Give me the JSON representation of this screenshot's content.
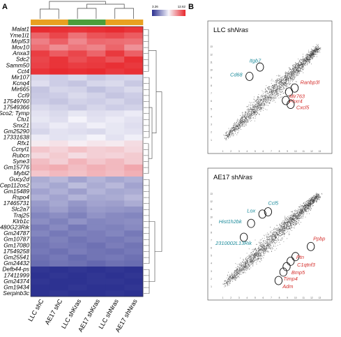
{
  "panels": {
    "a": "A",
    "b": "B"
  },
  "colors": {
    "red": "#e8262b",
    "white": "#f6f5fb",
    "blue": "#2b3090",
    "teal": "#1a8a9a",
    "label_red": "#d42d2a",
    "groups": [
      "#e8a020",
      "#e8a020",
      "#4a9e3a",
      "#4a9e3a",
      "#e8a020",
      "#e8a020"
    ]
  },
  "chart_data": [
    {
      "type": "heatmap",
      "title": "",
      "legend": {
        "min": "3.26",
        "max": "12.62"
      },
      "columns": [
        "LLC shC",
        "AE17 shC",
        "LLC shKras",
        "AE17 shKras",
        "LLC shNras",
        "AE17 shNras"
      ],
      "rows": [
        {
          "gene": "Malat1",
          "values": [
            12.5,
            12.4,
            12.3,
            12.4,
            12.5,
            12.3
          ]
        },
        {
          "gene": "Yme1l1",
          "values": [
            11.2,
            11.9,
            10.9,
            11.6,
            11.8,
            11.4
          ]
        },
        {
          "gene": "Mrpl53",
          "values": [
            10.6,
            11.3,
            10.4,
            11.1,
            11.0,
            10.9
          ]
        },
        {
          "gene": "Mov10",
          "values": [
            11.0,
            10.3,
            10.8,
            10.5,
            11.2,
            10.2
          ]
        },
        {
          "gene": "Anxa3",
          "values": [
            12.1,
            11.4,
            11.9,
            11.2,
            12.2,
            11.3
          ]
        },
        {
          "gene": "Sdc2",
          "values": [
            11.9,
            12.3,
            11.7,
            12.1,
            11.6,
            12.4
          ]
        },
        {
          "gene": "Samm50",
          "values": [
            12.0,
            12.3,
            12.1,
            12.2,
            12.4,
            12.2
          ]
        },
        {
          "gene": "Cct4",
          "values": [
            12.3,
            12.5,
            12.4,
            12.5,
            12.2,
            12.4
          ]
        },
        {
          "gene": "Mir107",
          "values": [
            7.2,
            7.0,
            7.3,
            6.9,
            7.1,
            7.2
          ]
        },
        {
          "gene": "Kcnq4",
          "values": [
            7.4,
            7.0,
            6.8,
            7.2,
            7.3,
            6.9
          ]
        },
        {
          "gene": "Mir665",
          "values": [
            6.8,
            7.2,
            7.1,
            6.7,
            7.0,
            7.3
          ]
        },
        {
          "gene": "Ccl9",
          "values": [
            6.9,
            7.0,
            7.3,
            7.1,
            6.8,
            7.0
          ]
        },
        {
          "gene": "17549760",
          "values": [
            7.0,
            6.8,
            7.1,
            7.0,
            7.2,
            6.9
          ]
        },
        {
          "gene": "17549366",
          "values": [
            7.3,
            7.1,
            6.9,
            7.2,
            7.0,
            7.1
          ]
        },
        {
          "gene": "Sco2; Tymp",
          "values": [
            7.5,
            7.3,
            7.6,
            7.4,
            7.5,
            7.7
          ]
        },
        {
          "gene": "Ctu1",
          "values": [
            7.6,
            7.4,
            7.9,
            7.5,
            7.7,
            7.5
          ]
        },
        {
          "gene": "Snx21",
          "values": [
            7.4,
            7.7,
            7.5,
            7.8,
            7.6,
            7.4
          ]
        },
        {
          "gene": "Gm25290",
          "values": [
            7.2,
            7.5,
            7.4,
            7.3,
            7.6,
            7.5
          ]
        },
        {
          "gene": "17331638",
          "values": [
            7.7,
            7.5,
            7.6,
            7.9,
            7.5,
            7.8
          ]
        },
        {
          "gene": "Rfx1",
          "values": [
            8.2,
            8.4,
            8.1,
            8.3,
            8.2,
            8.5
          ]
        },
        {
          "gene": "Ccnyl1",
          "values": [
            9.0,
            8.7,
            9.1,
            8.8,
            8.9,
            8.6
          ]
        },
        {
          "gene": "Rubcn",
          "values": [
            8.6,
            8.9,
            8.5,
            8.8,
            8.7,
            8.9
          ]
        },
        {
          "gene": "Syne3",
          "values": [
            9.2,
            8.8,
            9.4,
            9.0,
            9.3,
            8.9
          ]
        },
        {
          "gene": "Gm15776",
          "values": [
            9.4,
            9.6,
            9.2,
            9.5,
            9.3,
            9.7
          ]
        },
        {
          "gene": "Mybl2",
          "values": [
            9.0,
            9.3,
            9.1,
            9.4,
            9.2,
            9.5
          ]
        },
        {
          "gene": "Gucy2d",
          "values": [
            6.2,
            6.5,
            6.0,
            6.4,
            6.1,
            6.3
          ]
        },
        {
          "gene": "Cep112os2",
          "values": [
            6.4,
            6.1,
            6.6,
            6.2,
            6.5,
            6.0
          ]
        },
        {
          "gene": "Gm15489",
          "values": [
            6.0,
            6.3,
            5.9,
            6.4,
            6.1,
            6.2
          ]
        },
        {
          "gene": "Rspo4",
          "values": [
            6.3,
            6.0,
            6.4,
            6.1,
            6.2,
            6.5
          ]
        },
        {
          "gene": "17465731",
          "values": [
            5.8,
            6.1,
            5.7,
            6.0,
            5.9,
            6.2
          ]
        },
        {
          "gene": "Slc2a7",
          "values": [
            5.6,
            5.9,
            5.5,
            5.8,
            5.7,
            5.6
          ]
        },
        {
          "gene": "Traj25",
          "values": [
            5.3,
            5.5,
            5.2,
            5.6,
            5.4,
            5.3
          ]
        },
        {
          "gene": "Klrb1c",
          "values": [
            5.5,
            5.2,
            5.6,
            5.3,
            5.4,
            5.5
          ]
        },
        {
          "gene": "4930480G23Rik",
          "values": [
            5.1,
            5.4,
            5.0,
            5.3,
            5.2,
            5.4
          ]
        },
        {
          "gene": "Gm24787",
          "values": [
            5.3,
            5.0,
            5.2,
            5.1,
            5.3,
            5.0
          ]
        },
        {
          "gene": "Gm10787",
          "values": [
            5.0,
            5.2,
            4.9,
            5.1,
            5.0,
            5.2
          ]
        },
        {
          "gene": "Gm17080",
          "values": [
            4.9,
            5.1,
            5.0,
            4.8,
            5.1,
            4.9
          ]
        },
        {
          "gene": "17549258",
          "values": [
            5.0,
            4.8,
            5.1,
            4.9,
            4.8,
            5.0
          ]
        },
        {
          "gene": "Gm25541",
          "values": [
            4.8,
            5.0,
            4.7,
            4.9,
            5.0,
            4.8
          ]
        },
        {
          "gene": "Gm24432",
          "values": [
            4.7,
            4.9,
            4.8,
            4.6,
            4.8,
            4.7
          ]
        },
        {
          "gene": "Defb44-ps",
          "values": [
            3.4,
            3.3,
            3.4,
            3.3,
            3.4,
            3.3
          ]
        },
        {
          "gene": "17411999",
          "values": [
            3.3,
            3.4,
            3.3,
            3.4,
            3.3,
            3.4
          ]
        },
        {
          "gene": "Gm24374",
          "values": [
            3.4,
            3.3,
            3.3,
            3.4,
            3.4,
            3.3
          ]
        },
        {
          "gene": "Gm19434",
          "values": [
            3.3,
            3.3,
            3.4,
            3.3,
            3.3,
            3.4
          ]
        },
        {
          "gene": "Serpinb3c",
          "values": [
            3.3,
            3.4,
            3.3,
            3.3,
            3.4,
            3.3
          ]
        }
      ]
    },
    {
      "type": "scatter",
      "title_prefix": "LLC sh",
      "title_gene": "Nras",
      "xlim": [
        0,
        14
      ],
      "ylim": [
        0,
        14
      ],
      "x_ticks": [
        "1",
        "2",
        "3",
        "4",
        "5",
        "6",
        "7",
        "8",
        "9",
        "10",
        "11",
        "12",
        "13"
      ],
      "y_ticks": [
        "1",
        "2",
        "3",
        "4",
        "5",
        "6",
        "7",
        "8",
        "9",
        "10",
        "11",
        "12",
        "13"
      ],
      "labels": [
        {
          "text": "Itgb7",
          "x": 5.6,
          "y": 10.4,
          "lx": 4.3,
          "ly": 11.0,
          "color": "teal"
        },
        {
          "text": "Cd68",
          "x": 4.3,
          "y": 9.2,
          "lx": 1.9,
          "ly": 9.2,
          "color": "teal"
        },
        {
          "text": "Ranbp3l",
          "x": 9.9,
          "y": 7.7,
          "lx": 10.6,
          "ly": 8.2,
          "color": "red"
        },
        {
          "text": "Mir763",
          "x": 9.2,
          "y": 7.2,
          "lx": 9.2,
          "ly": 6.4,
          "color": "red"
        },
        {
          "text": "Phxr4",
          "x": 8.8,
          "y": 6.1,
          "lx": 9.2,
          "ly": 5.8,
          "color": "red"
        },
        {
          "text": "Cxcl5",
          "x": 9.4,
          "y": 5.6,
          "lx": 10.1,
          "ly": 5.0,
          "color": "red"
        }
      ]
    },
    {
      "type": "scatter",
      "title_prefix": "AE17 sh",
      "title_gene": "Nras",
      "xlim": [
        0,
        14
      ],
      "ylim": [
        0,
        14
      ],
      "x_ticks": [
        "1",
        "2",
        "3",
        "4",
        "5",
        "6",
        "7",
        "8",
        "9",
        "10",
        "11",
        "12",
        "13"
      ],
      "y_ticks": [
        "1",
        "2",
        "3",
        "4",
        "5",
        "6",
        "7",
        "8",
        "9",
        "10",
        "11",
        "12",
        "13"
      ],
      "labels": [
        {
          "text": "Ccl5",
          "x": 6.6,
          "y": 10.7,
          "lx": 6.6,
          "ly": 11.6,
          "color": "teal"
        },
        {
          "text": "Lox",
          "x": 5.9,
          "y": 10.4,
          "lx": 4.0,
          "ly": 10.6,
          "color": "teal"
        },
        {
          "text": "Hist1h2bk",
          "x": 4.5,
          "y": 9.2,
          "lx": 0.5,
          "ly": 9.2,
          "color": "teal"
        },
        {
          "text": "2310002L13Rik",
          "x": 3.6,
          "y": 7.4,
          "lx": 0.1,
          "ly": 6.4,
          "color": "teal"
        },
        {
          "text": "Ppbp",
          "x": 11.9,
          "y": 6.2,
          "lx": 12.2,
          "ly": 7.0,
          "color": "red"
        },
        {
          "text": "Ptn",
          "x": 10.0,
          "y": 4.9,
          "lx": 10.1,
          "ly": 4.6,
          "color": "red"
        },
        {
          "text": "C1qtnf3",
          "x": 9.4,
          "y": 4.3,
          "lx": 10.2,
          "ly": 3.6,
          "color": "red"
        },
        {
          "text": "Bmp5",
          "x": 8.9,
          "y": 3.6,
          "lx": 9.5,
          "ly": 2.6,
          "color": "red"
        },
        {
          "text": "Timp4",
          "x": 8.5,
          "y": 2.9,
          "lx": 8.5,
          "ly": 1.8,
          "color": "red"
        },
        {
          "text": "Adm",
          "x": 7.9,
          "y": 1.8,
          "lx": 8.4,
          "ly": 0.8,
          "color": "red"
        }
      ]
    }
  ]
}
